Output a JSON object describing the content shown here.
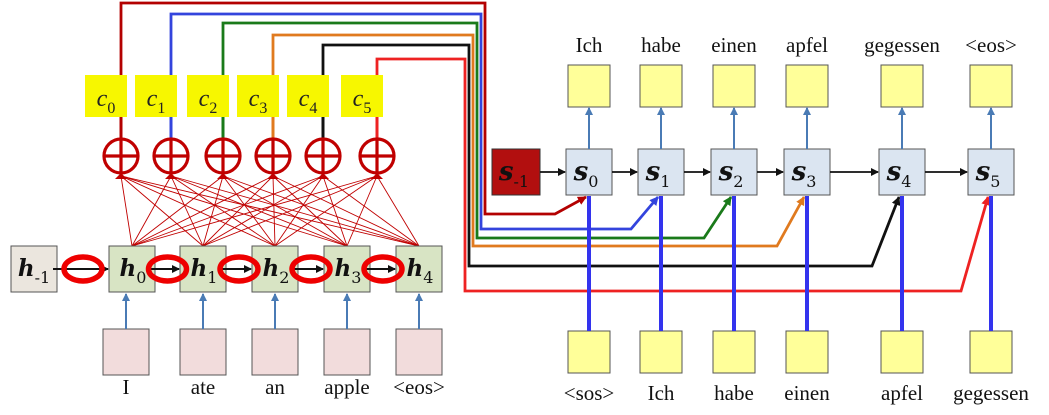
{
  "encoder": {
    "inputs": [
      "I",
      "ate",
      "an",
      "apple",
      "<eos>"
    ],
    "initial_state": {
      "base": "h",
      "sub": "-1"
    },
    "states": [
      {
        "base": "h",
        "sub": "0"
      },
      {
        "base": "h",
        "sub": "1"
      },
      {
        "base": "h",
        "sub": "2"
      },
      {
        "base": "h",
        "sub": "3"
      },
      {
        "base": "h",
        "sub": "4"
      }
    ]
  },
  "contexts": [
    {
      "base": "c",
      "sub": "0"
    },
    {
      "base": "c",
      "sub": "1"
    },
    {
      "base": "c",
      "sub": "2"
    },
    {
      "base": "c",
      "sub": "3"
    },
    {
      "base": "c",
      "sub": "4"
    },
    {
      "base": "c",
      "sub": "5"
    }
  ],
  "decoder": {
    "initial_state": {
      "base": "s",
      "sub": "-1"
    },
    "states": [
      {
        "base": "s",
        "sub": "0"
      },
      {
        "base": "s",
        "sub": "1"
      },
      {
        "base": "s",
        "sub": "2"
      },
      {
        "base": "s",
        "sub": "3"
      },
      {
        "base": "s",
        "sub": "4"
      },
      {
        "base": "s",
        "sub": "5"
      }
    ],
    "outputs": [
      "Ich",
      "habe",
      "einen",
      "apfel",
      "gegessen",
      "<eos>"
    ],
    "inputs": [
      "<sos>",
      "Ich",
      "habe",
      "einen",
      "apfel",
      "gegessen"
    ]
  },
  "colors": {
    "context_lines": [
      "#b30000",
      "#3344dd",
      "#1a7a1a",
      "#e07a1f",
      "#111111",
      "#ee2222"
    ],
    "context_fill": "#f7f700",
    "sum_node": "#c00000",
    "encoder_fill": "#d8e4c4",
    "init_h_fill": "#ebe6de",
    "input_fill": "#f2dcdc",
    "decoder_fill": "#dbe5f1",
    "init_s_fill": "#b20f0f",
    "token_fill": "#ffff99",
    "attention_ring": "#ee0000",
    "decoder_input_arrow": "#3333ee",
    "decoder_arrow": "#4a7bb5"
  }
}
